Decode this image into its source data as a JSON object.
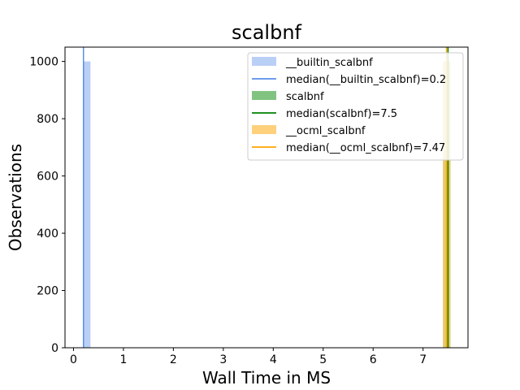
{
  "chart_data": {
    "type": "bar",
    "title": "scalbnf",
    "xlabel": "Wall Time in MS",
    "ylabel": "Observations",
    "xlim": [
      -0.17,
      7.9
    ],
    "ylim": [
      0,
      1050
    ],
    "xticks": [
      0,
      1,
      2,
      3,
      4,
      5,
      6,
      7
    ],
    "yticks": [
      0,
      200,
      400,
      600,
      800,
      1000
    ],
    "grid": false,
    "legend_position": "top-right",
    "series": [
      {
        "name": "__builtin_scalbnf",
        "color": "#aec7f5",
        "bins": [
          {
            "x0": 0.19,
            "x1": 0.34,
            "count": 1000
          }
        ],
        "median": 0.2,
        "median_label": "median(__builtin_scalbnf)=0.2",
        "median_color": "#5a8ee8"
      },
      {
        "name": "scalbnf",
        "color": "#6bb86b",
        "bins": [
          {
            "x0": 7.4,
            "x1": 7.55,
            "count": 1000
          }
        ],
        "median": 7.5,
        "median_label": "median(scalbnf)=7.5",
        "median_color": "#008000"
      },
      {
        "name": "__ocml_scalbnf",
        "color": "#ffc966",
        "bins": [
          {
            "x0": 7.4,
            "x1": 7.55,
            "count": 1000
          }
        ],
        "median": 7.47,
        "median_label": "median(__ocml_scalbnf)=7.47",
        "median_color": "#ffa500"
      }
    ]
  }
}
